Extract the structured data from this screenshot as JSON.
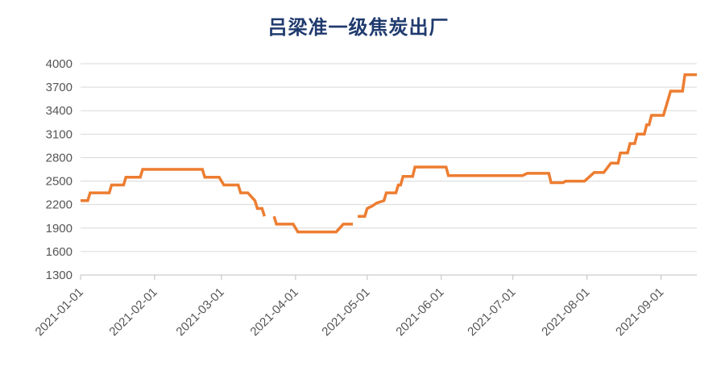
{
  "chart_data": {
    "type": "line",
    "title": "吕梁准一级焦炭出厂",
    "xlabel": "",
    "ylabel": "",
    "ylim": [
      1300,
      4000
    ],
    "yticks": [
      "4000",
      "3700",
      "3400",
      "3100",
      "2800",
      "2500",
      "2200",
      "1900",
      "1600",
      "1300"
    ],
    "xticks": [
      "2021-01-01",
      "2021-02-01",
      "2021-03-01",
      "2021-04-01",
      "2021-05-01",
      "2021-06-01",
      "2021-07-01",
      "2021-08-01",
      "2021-09-01"
    ],
    "xlim": [
      "2021-01-01",
      "2021-09-16"
    ],
    "grid": "horizontal",
    "colors": {
      "line": "#ed7d31",
      "grid": "#d9d9d9",
      "axis": "#bfbfbf",
      "title": "#1f3a6e"
    },
    "series": [
      {
        "segments": [
          [
            [
              "2021-01-01",
              2250
            ],
            [
              "2021-01-04",
              2250
            ],
            [
              "2021-01-05",
              2350
            ],
            [
              "2021-01-13",
              2350
            ],
            [
              "2021-01-14",
              2450
            ],
            [
              "2021-01-19",
              2450
            ],
            [
              "2021-01-20",
              2550
            ],
            [
              "2021-01-26",
              2550
            ],
            [
              "2021-01-27",
              2650
            ],
            [
              "2021-02-21",
              2650
            ],
            [
              "2021-02-22",
              2550
            ],
            [
              "2021-02-28",
              2550
            ],
            [
              "2021-03-02",
              2450
            ],
            [
              "2021-03-08",
              2450
            ],
            [
              "2021-03-09",
              2350
            ],
            [
              "2021-03-12",
              2350
            ],
            [
              "2021-03-15",
              2250
            ],
            [
              "2021-03-16",
              2150
            ],
            [
              "2021-03-18",
              2150
            ],
            [
              "2021-03-19",
              2050
            ]
          ],
          [
            [
              "2021-03-23",
              2050
            ],
            [
              "2021-03-24",
              1950
            ],
            [
              "2021-03-31",
              1950
            ],
            [
              "2021-04-02",
              1850
            ],
            [
              "2021-04-18",
              1850
            ],
            [
              "2021-04-21",
              1950
            ],
            [
              "2021-04-25",
              1950
            ]
          ],
          [
            [
              "2021-04-27",
              2050
            ],
            [
              "2021-04-30",
              2050
            ],
            [
              "2021-05-01",
              2150
            ],
            [
              "2021-05-03",
              2180
            ],
            [
              "2021-05-05",
              2220
            ],
            [
              "2021-05-08",
              2250
            ],
            [
              "2021-05-09",
              2350
            ],
            [
              "2021-05-13",
              2350
            ],
            [
              "2021-05-14",
              2450
            ],
            [
              "2021-05-15",
              2450
            ],
            [
              "2021-05-16",
              2560
            ],
            [
              "2021-05-20",
              2560
            ],
            [
              "2021-05-21",
              2680
            ],
            [
              "2021-06-03",
              2680
            ],
            [
              "2021-06-04",
              2570
            ],
            [
              "2021-06-15",
              2570
            ],
            [
              "2021-07-01",
              2570
            ],
            [
              "2021-07-05",
              2570
            ],
            [
              "2021-07-07",
              2600
            ],
            [
              "2021-07-16",
              2600
            ],
            [
              "2021-07-17",
              2480
            ],
            [
              "2021-07-22",
              2480
            ],
            [
              "2021-07-23",
              2500
            ],
            [
              "2021-07-31",
              2500
            ],
            [
              "2021-08-04",
              2610
            ],
            [
              "2021-08-08",
              2610
            ],
            [
              "2021-08-11",
              2730
            ],
            [
              "2021-08-14",
              2730
            ],
            [
              "2021-08-15",
              2860
            ],
            [
              "2021-08-18",
              2860
            ],
            [
              "2021-08-19",
              2980
            ],
            [
              "2021-08-21",
              2980
            ],
            [
              "2021-08-22",
              3100
            ],
            [
              "2021-08-25",
              3100
            ],
            [
              "2021-08-26",
              3220
            ],
            [
              "2021-08-27",
              3220
            ],
            [
              "2021-08-28",
              3340
            ],
            [
              "2021-09-02",
              3340
            ],
            [
              "2021-09-05",
              3650
            ],
            [
              "2021-09-10",
              3650
            ],
            [
              "2021-09-11",
              3860
            ],
            [
              "2021-09-16",
              3860
            ]
          ]
        ]
      }
    ]
  }
}
